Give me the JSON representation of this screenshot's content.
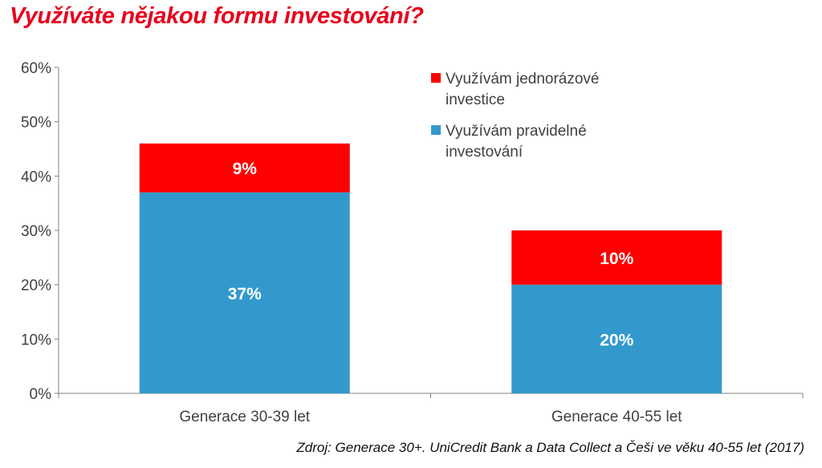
{
  "title": "Využíváte nějakou formu investování?",
  "source": "Zdroj: Generace 30+. UniCredit Bank a Data Collect a Češi ve věku 40-55 let (2017)",
  "colors": {
    "title": "#e8001c",
    "one_time": "#ff0000",
    "regular": "#3399cc"
  },
  "chart_data": {
    "type": "bar",
    "stacked": true,
    "categories": [
      "Generace 30-39 let",
      "Generace 40-55 let"
    ],
    "series": [
      {
        "name": "Využívám pravidelné investování",
        "values": [
          37,
          20
        ],
        "labels": [
          "37%",
          "20%"
        ],
        "color": "#3399cc"
      },
      {
        "name": "Využívám jednorázové investice",
        "values": [
          9,
          10
        ],
        "labels": [
          "9%",
          "10%"
        ],
        "color": "#ff0000"
      }
    ],
    "ylim": [
      0,
      60
    ],
    "yticks": [
      0,
      10,
      20,
      30,
      40,
      50,
      60
    ],
    "ytick_labels": [
      "0%",
      "10%",
      "20%",
      "30%",
      "40%",
      "50%",
      "60%"
    ],
    "grid": false,
    "legend_position": "top-right"
  },
  "legend": [
    {
      "label": "Využívám jednorázové investice",
      "color": "#ff0000"
    },
    {
      "label": "Využívám pravidelné investování",
      "color": "#3399cc"
    }
  ]
}
